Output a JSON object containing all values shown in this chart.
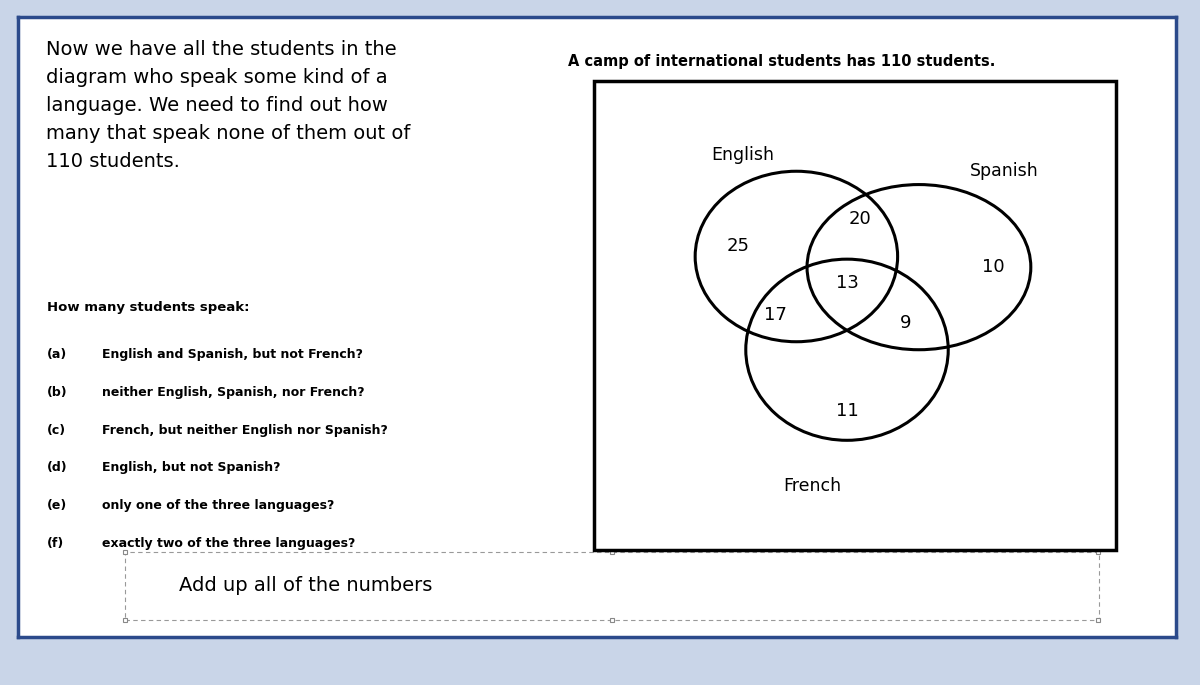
{
  "bg_color": "#ffffff",
  "page_bg": "#c9d5e8",
  "border_color": "#2b4a8b",
  "title_right": "A camp of international students has 110 students.",
  "left_text_lines": [
    "Now we have all the students in the",
    "diagram who speak some kind of a",
    "language. We need to find out how",
    "many that speak none of them out of",
    "110 students."
  ],
  "questions_header": "How many students speak:",
  "questions": [
    [
      "(a)",
      "English and Spanish, but not French?"
    ],
    [
      "(b)",
      "neither English, Spanish, nor French?"
    ],
    [
      "(c)",
      "French, but neither English nor Spanish?"
    ],
    [
      "(d)",
      "English, but not Spanish?"
    ],
    [
      "(e)",
      "only one of the three languages?"
    ],
    [
      "(f)",
      "exactly two of the three languages?"
    ]
  ],
  "bottom_text": "Add up all of the numbers",
  "venn_title_english": "English",
  "venn_title_spanish": "Spanish",
  "venn_title_french": "French",
  "english_only": "25",
  "spanish_only": "10",
  "french_only": "11",
  "english_spanish": "20",
  "english_french": "17",
  "spanish_french": "9",
  "all_three": "13",
  "total_students": 110
}
